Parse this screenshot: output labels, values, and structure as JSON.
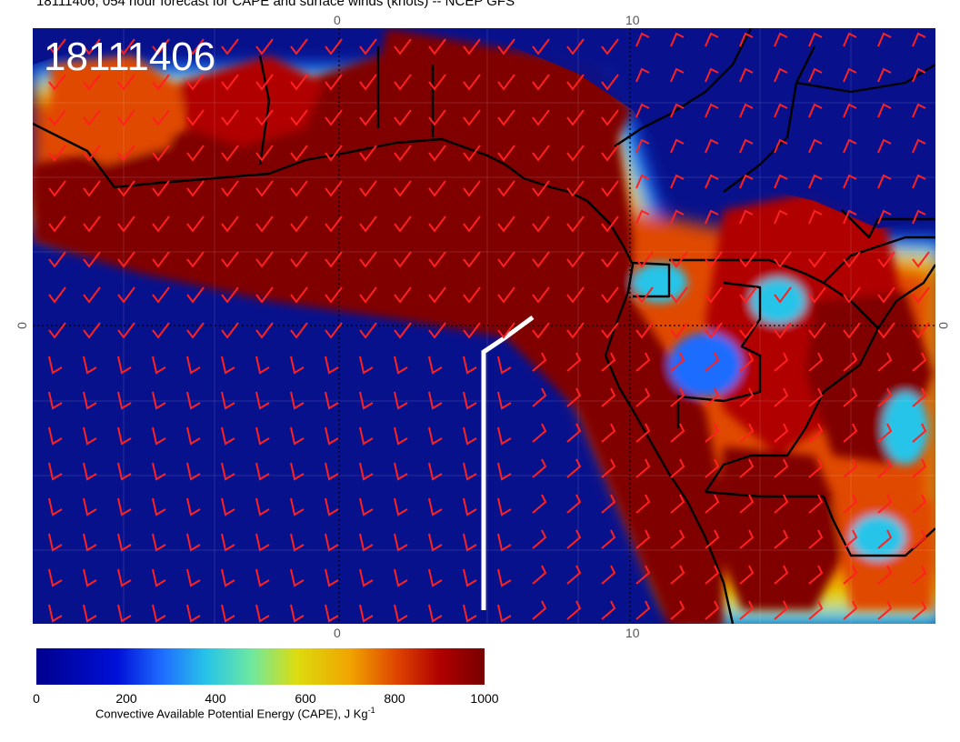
{
  "title": "18111406, 054 hour forecast for CAPE and surface winds (knots) -- NCEP GFS",
  "date_stamp": "18111406",
  "axis_ticks": {
    "top": [
      "0",
      "10"
    ],
    "bottom": [
      "0",
      "10"
    ],
    "left": "0",
    "right": "0"
  },
  "colorbar": {
    "tick_labels": [
      "0",
      "200",
      "400",
      "600",
      "800",
      "1000"
    ],
    "title": "Convective Available Potential Energy (CAPE), J Kg",
    "title_superscript": "-1",
    "colors": [
      "#00008c",
      "#0010d8",
      "#1f6cff",
      "#27c4e8",
      "#6ee8a0",
      "#dcdc10",
      "#f0a400",
      "#e04800",
      "#b00000",
      "#780000"
    ]
  },
  "map": {
    "field": "CAPE",
    "wind_barb_color": "#ff2020",
    "coastline_color": "#000000",
    "highlight_line_color": "#ffffff"
  }
}
